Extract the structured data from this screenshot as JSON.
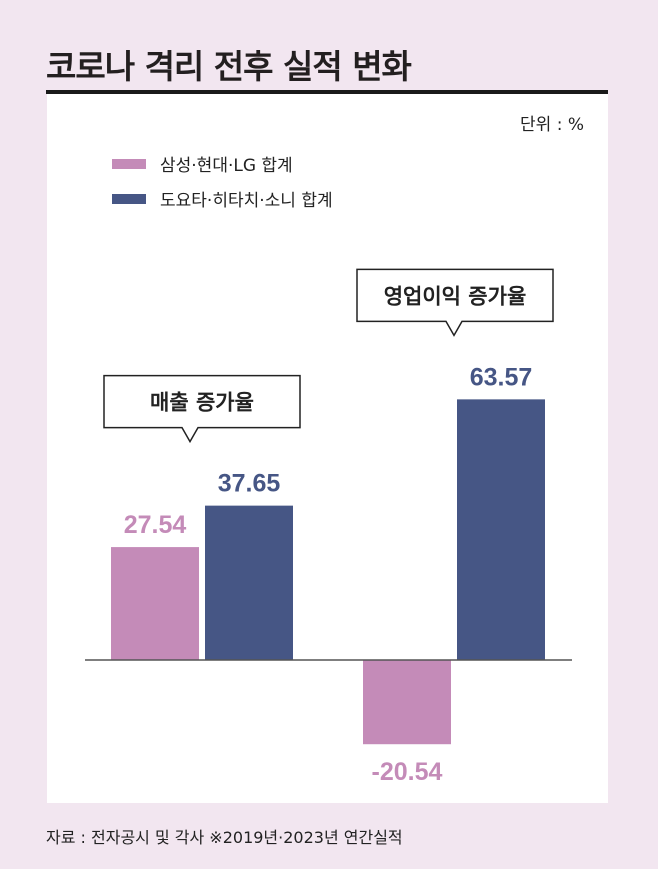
{
  "chart_data": {
    "type": "bar",
    "title": "코로나 격리 전후 실적 변화",
    "unit_label": "단위 : %",
    "categories": [
      "매출 증가율",
      "영업이익 증가율"
    ],
    "series": [
      {
        "name": "삼성·현대·LG 합계",
        "color": "#c48bb8",
        "values": [
          27.54,
          -20.54
        ],
        "labels": [
          "27.54",
          "-20.54"
        ]
      },
      {
        "name": "도요타·히타치·소니 합계",
        "color": "#465685",
        "values": [
          37.65,
          63.57
        ],
        "labels": [
          "37.65",
          "63.57"
        ]
      }
    ],
    "legend": "top-left",
    "source": "자료 : 전자공시 및 각사 ※2019년·2023년 연간실적"
  }
}
